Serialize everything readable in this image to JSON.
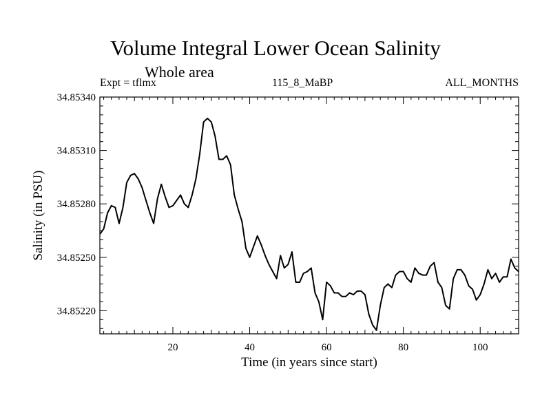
{
  "chart_data": {
    "type": "line",
    "title": "Volume Integral Lower Ocean Salinity",
    "subtitle": "Whole area",
    "left_label": "Expt = tflmx",
    "center_label": "115_8_MaBP",
    "right_label": "ALL_MONTHS",
    "xlabel": "Time (in years since start)",
    "ylabel": "Salinity (in PSU)",
    "xlim": [
      1,
      110
    ],
    "ylim": [
      34.85207,
      34.8534
    ],
    "xticks": [
      20,
      40,
      60,
      80,
      100
    ],
    "yticks": [
      34.8522,
      34.8525,
      34.8528,
      34.8531,
      34.8534
    ],
    "ytick_labels": [
      "34.85220",
      "34.85250",
      "34.85280",
      "34.85310",
      "34.85340"
    ],
    "xtick_labels": [
      "20",
      "40",
      "60",
      "80",
      "100"
    ],
    "series": [
      {
        "name": "salinity",
        "x": [
          1,
          2,
          3,
          4,
          5,
          6,
          7,
          8,
          9,
          10,
          11,
          12,
          13,
          14,
          15,
          16,
          17,
          18,
          19,
          20,
          21,
          22,
          23,
          24,
          25,
          26,
          27,
          28,
          29,
          30,
          31,
          32,
          33,
          34,
          35,
          36,
          37,
          38,
          39,
          40,
          41,
          42,
          43,
          44,
          45,
          46,
          47,
          48,
          49,
          50,
          51,
          52,
          53,
          54,
          55,
          56,
          57,
          58,
          59,
          60,
          61,
          62,
          63,
          64,
          65,
          66,
          67,
          68,
          69,
          70,
          71,
          72,
          73,
          74,
          75,
          76,
          77,
          78,
          79,
          80,
          81,
          82,
          83,
          84,
          85,
          86,
          87,
          88,
          89,
          90,
          91,
          92,
          93,
          94,
          95,
          96,
          97,
          98,
          99,
          100,
          101,
          102,
          103,
          104,
          105,
          106,
          107,
          108,
          109,
          110
        ],
        "y": [
          34.85263,
          34.85266,
          34.85275,
          34.85279,
          34.85278,
          34.85269,
          34.85278,
          34.85292,
          34.85296,
          34.85297,
          34.85294,
          34.85289,
          34.85282,
          34.85275,
          34.85269,
          34.85283,
          34.85291,
          34.85284,
          34.85278,
          34.85279,
          34.85282,
          34.85285,
          34.8528,
          34.85278,
          34.85285,
          34.85294,
          34.85308,
          34.85326,
          34.85328,
          34.85326,
          34.85318,
          34.85305,
          34.85305,
          34.85307,
          34.85302,
          34.85285,
          34.85277,
          34.8527,
          34.85255,
          34.8525,
          34.85256,
          34.85262,
          34.85257,
          34.85251,
          34.85246,
          34.85242,
          34.85238,
          34.85251,
          34.85244,
          34.85246,
          34.85253,
          34.85236,
          34.85236,
          34.85241,
          34.85242,
          34.85244,
          34.8523,
          34.85225,
          34.85215,
          34.85236,
          34.85234,
          34.8523,
          34.8523,
          34.85228,
          34.85228,
          34.8523,
          34.85229,
          34.85231,
          34.85231,
          34.85229,
          34.85218,
          34.85212,
          34.85209,
          34.85223,
          34.85233,
          34.85235,
          34.85233,
          34.8524,
          34.85242,
          34.85242,
          34.85238,
          34.85236,
          34.85244,
          34.85241,
          34.8524,
          34.8524,
          34.85245,
          34.85247,
          34.85236,
          34.85233,
          34.85223,
          34.85221,
          34.85238,
          34.85243,
          34.85243,
          34.8524,
          34.85234,
          34.85232,
          34.85226,
          34.85229,
          34.85235,
          34.85243,
          34.85238,
          34.85241,
          34.85236,
          34.85239,
          34.85239,
          34.85249,
          34.85244,
          34.85242
        ]
      }
    ],
    "grid": false,
    "line_color": "#000000"
  }
}
